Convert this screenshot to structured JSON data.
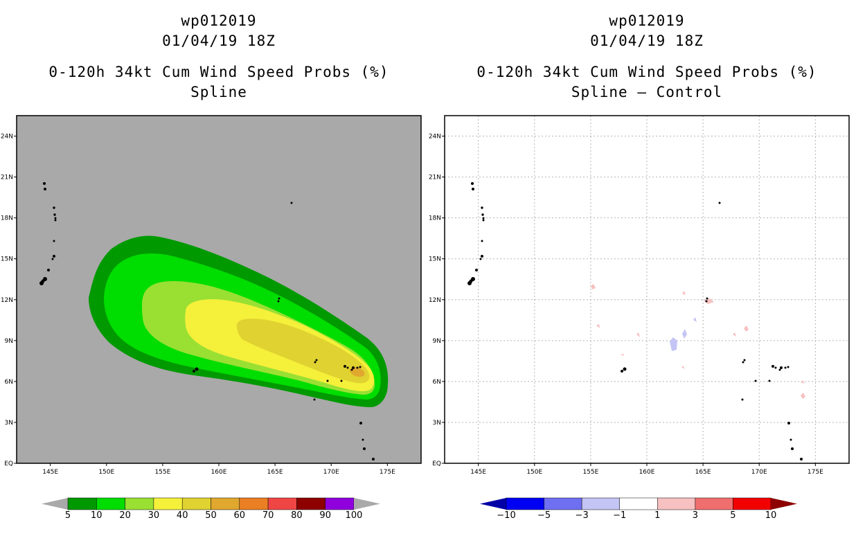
{
  "left_panel": {
    "storm_id": "wp012019",
    "datetime": "01/04/19 18Z",
    "product": "0-120h 34kt Cum Wind Speed Probs (%)",
    "subtitle": "Spline"
  },
  "right_panel": {
    "storm_id": "wp012019",
    "datetime": "01/04/19 18Z",
    "product": "0-120h 34kt Cum Wind Speed Probs (%)",
    "subtitle": "Spline – Control"
  },
  "map": {
    "lon_range": [
      142,
      178
    ],
    "lat_range": [
      0,
      25.5
    ],
    "lon_ticks": [
      "145E",
      "150E",
      "155E",
      "160E",
      "165E",
      "170E",
      "175E"
    ],
    "lat_ticks": [
      "EQ",
      "3N",
      "6N",
      "9N",
      "12N",
      "15N",
      "18N",
      "21N",
      "24N"
    ],
    "background_color": "#a9a9a9"
  },
  "left_colorbar": {
    "labels": [
      "5",
      "10",
      "20",
      "30",
      "40",
      "50",
      "60",
      "70",
      "80",
      "90",
      "100"
    ],
    "colors": [
      "#009900",
      "#00dd00",
      "#99e033",
      "#f5f03a",
      "#e0d230",
      "#e0a82e",
      "#eb7f23",
      "#f04545",
      "#8e0000",
      "#8f00dd"
    ]
  },
  "right_colorbar": {
    "labels": [
      "−10",
      "−5",
      "−3",
      "−1",
      "1",
      "3",
      "5",
      "10"
    ],
    "colors": [
      "#0000a6",
      "#0000f2",
      "#6f6ff2",
      "#c4c4f5",
      "#ffffff",
      "#f7c1c1",
      "#f06e6e",
      "#f20000",
      "#8c0000"
    ]
  },
  "prob_contours_percent": [
    5,
    10,
    20,
    30,
    40,
    50,
    60
  ]
}
